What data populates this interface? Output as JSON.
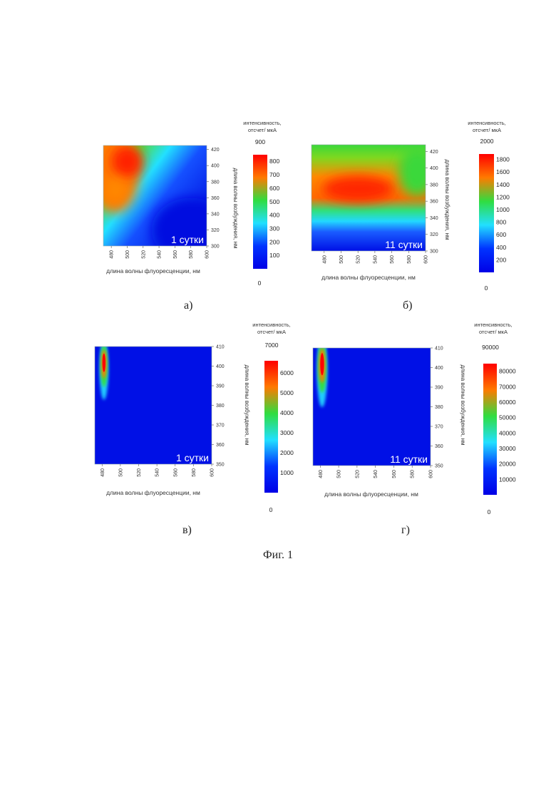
{
  "figure_caption": "Фиг. 1",
  "colors": {
    "ramp": [
      "#0000e6",
      "#0033ff",
      "#22e0ff",
      "#30dd40",
      "#ff7a00",
      "#ff0000"
    ]
  },
  "chart_data": [
    {
      "type": "heatmap",
      "panel_label": "а)",
      "stamp": "1 сутки",
      "xlabel": "длина волны флуоресценции, нм",
      "ylabel": "длина волны возбуждения, нм",
      "x_ticks": [
        "480",
        "500",
        "520",
        "540",
        "560",
        "580",
        "600"
      ],
      "y_ticks": [
        "300",
        "320",
        "340",
        "360",
        "380",
        "400",
        "420"
      ],
      "xlim": [
        470,
        600
      ],
      "ylim": [
        300,
        425
      ],
      "colorbar": {
        "title": "интенсивность, отсчет/ мкА",
        "max_label": "900",
        "min_label": "0",
        "ticks": [
          "100",
          "200",
          "300",
          "400",
          "500",
          "600",
          "700",
          "800"
        ],
        "range": [
          0,
          900
        ]
      },
      "peaks": [
        {
          "x": 500,
          "y": 405,
          "value": 820
        },
        {
          "x": 485,
          "y": 370,
          "value": 560
        }
      ]
    },
    {
      "type": "heatmap",
      "panel_label": "б)",
      "stamp": "11 сутки",
      "xlabel": "длина волны флуоресценции, нм",
      "ylabel": "длина волны возбуждения, нм",
      "x_ticks": [
        "480",
        "500",
        "520",
        "540",
        "560",
        "580",
        "600"
      ],
      "y_ticks": [
        "300",
        "320",
        "340",
        "360",
        "380",
        "400",
        "420"
      ],
      "xlim": [
        465,
        600
      ],
      "ylim": [
        300,
        428
      ],
      "colorbar": {
        "title": "интенсивность, отсчет/ мкА",
        "max_label": "2000",
        "min_label": "0",
        "ticks": [
          "200",
          "400",
          "600",
          "800",
          "1000",
          "1200",
          "1400",
          "1600",
          "1800"
        ],
        "range": [
          0,
          2000
        ]
      },
      "peaks": [
        {
          "x": 520,
          "y": 375,
          "value": 1750
        }
      ]
    },
    {
      "type": "heatmap",
      "panel_label": "в)",
      "stamp": "1 сутки",
      "xlabel": "длина волны флуоресценции, нм",
      "ylabel": "длина волны возбуждения, нм",
      "x_ticks": [
        "480",
        "500",
        "520",
        "540",
        "560",
        "580",
        "600"
      ],
      "y_ticks": [
        "350",
        "360",
        "370",
        "380",
        "390",
        "400",
        "410"
      ],
      "xlim": [
        472,
        600
      ],
      "ylim": [
        350,
        410
      ],
      "colorbar": {
        "title": "интенсивность, отсчет/ мкА",
        "max_label": "7000",
        "min_label": "0",
        "ticks": [
          "1000",
          "2000",
          "3000",
          "4000",
          "5000",
          "6000"
        ],
        "range": [
          0,
          7000
        ]
      },
      "peaks": [
        {
          "x": 482,
          "y": 401,
          "value": 6600
        }
      ]
    },
    {
      "type": "heatmap",
      "panel_label": "г)",
      "stamp": "11 сутки",
      "xlabel": "длина волны флуоресценции, нм",
      "ylabel": "длина волны возбуждения, нм",
      "x_ticks": [
        "480",
        "500",
        "520",
        "540",
        "560",
        "580",
        "600"
      ],
      "y_ticks": [
        "350",
        "360",
        "370",
        "380",
        "390",
        "400",
        "410"
      ],
      "xlim": [
        472,
        600
      ],
      "ylim": [
        350,
        410
      ],
      "colorbar": {
        "title": "интенсивность, отсчет/ мкА",
        "max_label": "90000",
        "min_label": "0",
        "ticks": [
          "10000",
          "20000",
          "30000",
          "40000",
          "50000",
          "60000",
          "70000",
          "80000"
        ],
        "range": [
          0,
          90000
        ]
      },
      "peaks": [
        {
          "x": 482,
          "y": 401,
          "value": 85000
        }
      ]
    }
  ]
}
